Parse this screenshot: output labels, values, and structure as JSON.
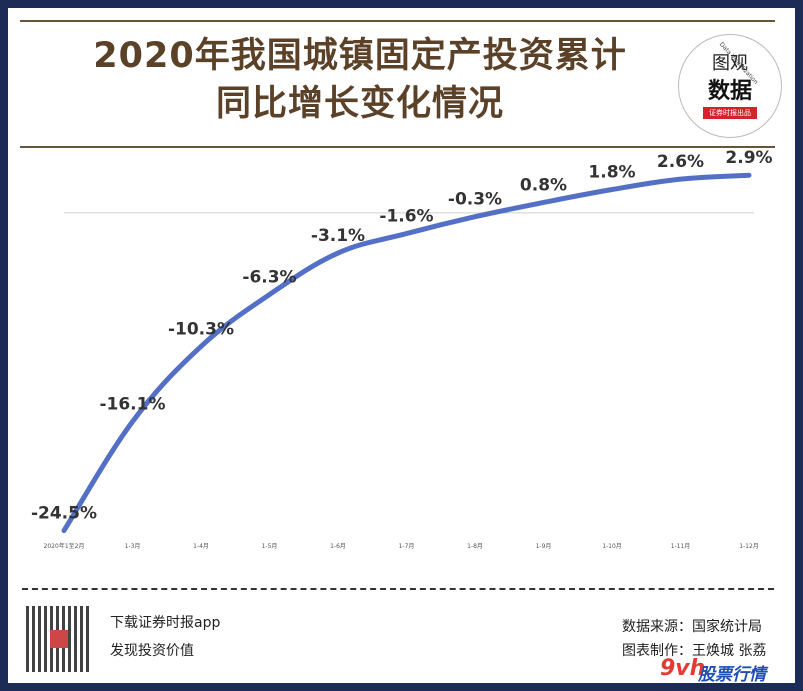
{
  "title_line1": "2020年我国城镇固定产投资累计",
  "title_line2": "同比增长变化情况",
  "logo": {
    "line1": "图观",
    "line2": "数据",
    "line3": "证券时报出品",
    "arc": "Data Visualization"
  },
  "footer": {
    "left_line1": "下载证券时报app",
    "left_line2": "发现投资价值",
    "right_line1": "数据来源：国家统计局",
    "right_line2": "图表制作：王焕城 张荔"
  },
  "watermark": {
    "num": "9vh",
    "text": "股票行情"
  },
  "chart_data": {
    "type": "line",
    "title": "2020年我国城镇固定产投资累计同比增长变化情况",
    "categories": [
      "2020年1至2月",
      "1-3月",
      "1-4月",
      "1-5月",
      "1-6月",
      "1-7月",
      "1-8月",
      "1-9月",
      "1-10月",
      "1-11月",
      "1-12月"
    ],
    "series": [
      {
        "values": [
          -24.5,
          -16.1,
          -10.3,
          -6.3,
          -3.1,
          -1.6,
          -0.3,
          0.8,
          1.8,
          2.6,
          2.9
        ]
      }
    ],
    "data_labels": [
      "-24.5%",
      "-16.1%",
      "-10.3%",
      "-6.3%",
      "-3.1%",
      "-1.6%",
      "-0.3%",
      "0.8%",
      "1.8%",
      "2.6%",
      "2.9%"
    ],
    "ylim": [
      -27,
      5
    ],
    "xlabel": "",
    "ylabel": "",
    "grid": false,
    "zero_line": true,
    "line_color": "#5470c6"
  }
}
